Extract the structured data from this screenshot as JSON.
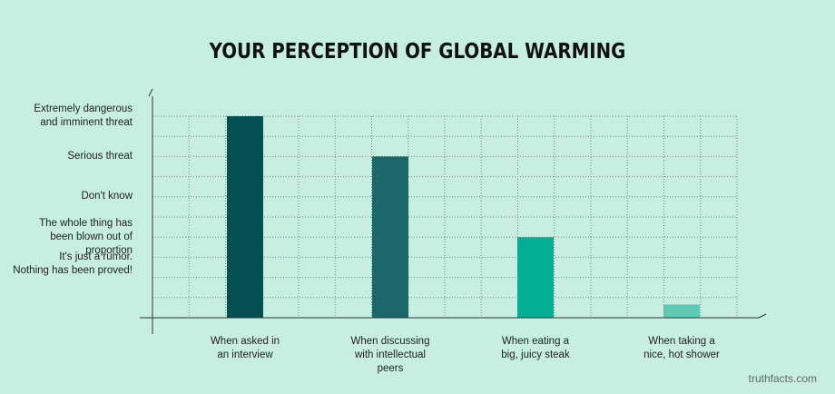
{
  "background_color": "#c6efe1",
  "chart_data": {
    "type": "bar",
    "title": "YOUR PERCEPTION OF GLOBAL WARMING",
    "xlabel": "",
    "ylabel": "",
    "grid": true,
    "grid_style": "dotted",
    "y_levels": [
      {
        "level": 1,
        "lines": [
          "It's just a rumor.",
          "Nothing has been proved!"
        ]
      },
      {
        "level": 2,
        "lines": [
          "The whole thing has",
          "been blown out of",
          "proportion"
        ]
      },
      {
        "level": 3,
        "lines": [
          "Don't know"
        ]
      },
      {
        "level": 4,
        "lines": [
          "Serious threat"
        ]
      },
      {
        "level": 5,
        "lines": [
          "Extremely dangerous",
          "and imminent threat"
        ]
      }
    ],
    "ylim": [
      0,
      5
    ],
    "categories": [
      {
        "lines": [
          "When asked in",
          "an interview"
        ]
      },
      {
        "lines": [
          "When discussing",
          "with intellectual",
          "peers"
        ]
      },
      {
        "lines": [
          "When eating a",
          "big, juicy steak"
        ]
      },
      {
        "lines": [
          "When taking a",
          "nice, hot shower"
        ]
      }
    ],
    "values": [
      5,
      4,
      2,
      0.33
    ],
    "bar_colors": [
      "#034f52",
      "#1b6769",
      "#02af95",
      "#5ecab6"
    ]
  },
  "credit": "truthfacts.com"
}
